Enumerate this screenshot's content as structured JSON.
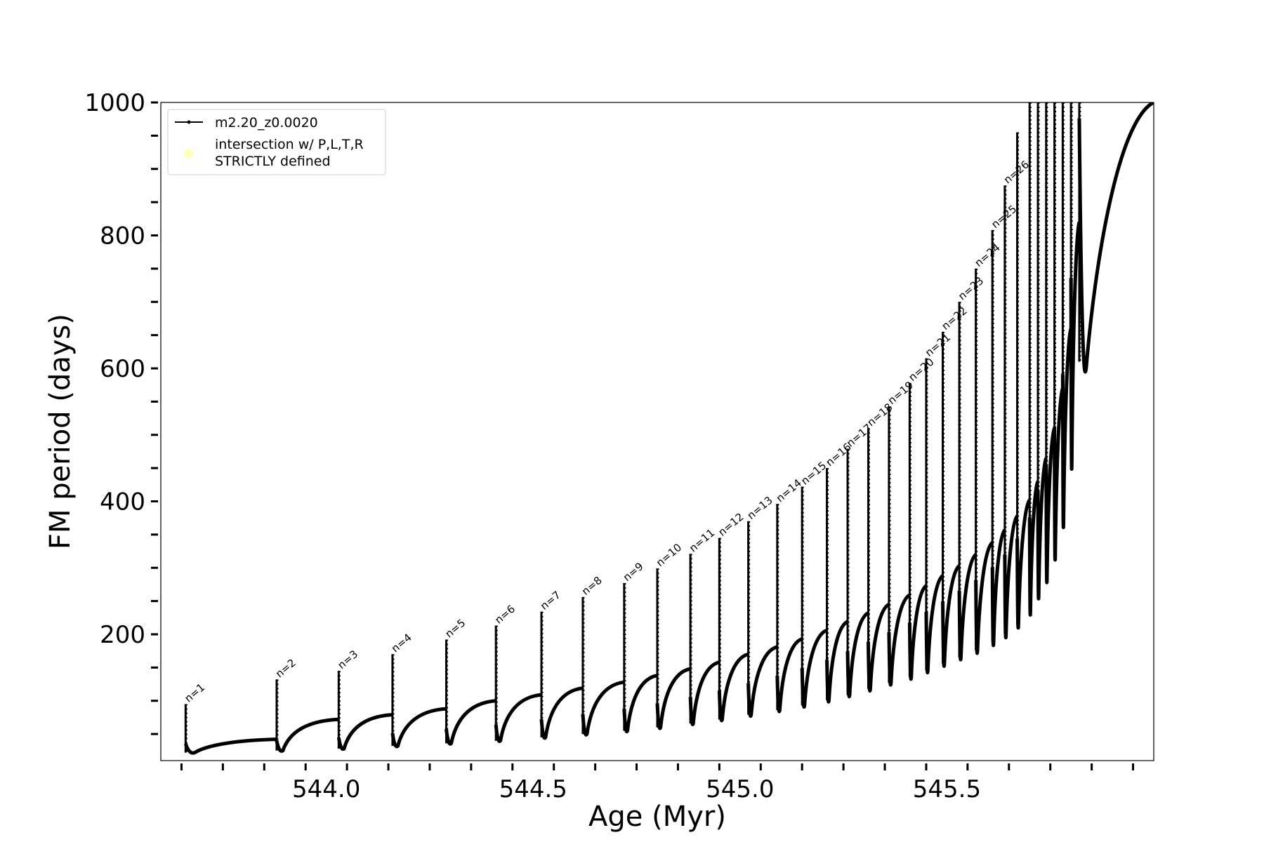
{
  "chart_data": {
    "type": "line",
    "title": "",
    "xlabel": "Age (Myr)",
    "ylabel": "FM period (days)",
    "xlim": [
      543.6,
      546.0
    ],
    "ylim": [
      10,
      1000
    ],
    "x_ticks": [
      544.0,
      544.5,
      545.0,
      545.5
    ],
    "x_tick_labels": [
      "544.0",
      "544.5",
      "545.0",
      "545.5"
    ],
    "x_minor_step": 0.1,
    "y_ticks": [
      200,
      400,
      600,
      800,
      1000
    ],
    "y_tick_labels": [
      "200",
      "400",
      "600",
      "800",
      "1000"
    ],
    "y_minor_step": 50,
    "grid": false,
    "legend": {
      "placement": "top-left",
      "entries": [
        {
          "label": "m2.20_z0.0020",
          "style": "line-with-markers",
          "color": "#000000"
        },
        {
          "label": "intersection w/ P,L,T,R\nSTRICTLY defined",
          "style": "marker",
          "color": "#ffffc0"
        }
      ]
    },
    "series": [
      {
        "name": "m2.20_z0.0020",
        "color": "#000000",
        "pulses": [
          {
            "n": 1,
            "age": 543.66,
            "peak": 95,
            "min": 22,
            "plateau": 42
          },
          {
            "n": 2,
            "age": 543.88,
            "peak": 132,
            "min": 25,
            "plateau": 72
          },
          {
            "n": 3,
            "age": 544.03,
            "peak": 145,
            "min": 28,
            "plateau": 79
          },
          {
            "n": 4,
            "age": 544.16,
            "peak": 170,
            "min": 32,
            "plateau": 88
          },
          {
            "n": 5,
            "age": 544.29,
            "peak": 192,
            "min": 36,
            "plateau": 100
          },
          {
            "n": 6,
            "age": 544.41,
            "peak": 213,
            "min": 40,
            "plateau": 109
          },
          {
            "n": 7,
            "age": 544.52,
            "peak": 234,
            "min": 45,
            "plateau": 119
          },
          {
            "n": 8,
            "age": 544.62,
            "peak": 256,
            "min": 50,
            "plateau": 128
          },
          {
            "n": 9,
            "age": 544.72,
            "peak": 277,
            "min": 55,
            "plateau": 138
          },
          {
            "n": 10,
            "age": 544.8,
            "peak": 299,
            "min": 60,
            "plateau": 148
          },
          {
            "n": 11,
            "age": 544.88,
            "peak": 321,
            "min": 66,
            "plateau": 158
          },
          {
            "n": 12,
            "age": 544.95,
            "peak": 345,
            "min": 72,
            "plateau": 170
          },
          {
            "n": 13,
            "age": 545.02,
            "peak": 370,
            "min": 79,
            "plateau": 181
          },
          {
            "n": 14,
            "age": 545.09,
            "peak": 396,
            "min": 86,
            "plateau": 193
          },
          {
            "n": 15,
            "age": 545.15,
            "peak": 422,
            "min": 93,
            "plateau": 206
          },
          {
            "n": 16,
            "age": 545.21,
            "peak": 450,
            "min": 101,
            "plateau": 219
          },
          {
            "n": 17,
            "age": 545.26,
            "peak": 479,
            "min": 109,
            "plateau": 232
          },
          {
            "n": 18,
            "age": 545.31,
            "peak": 510,
            "min": 118,
            "plateau": 245
          },
          {
            "n": 19,
            "age": 545.36,
            "peak": 543,
            "min": 127,
            "plateau": 259
          },
          {
            "n": 20,
            "age": 545.41,
            "peak": 578,
            "min": 136,
            "plateau": 273
          },
          {
            "n": 21,
            "age": 545.45,
            "peak": 615,
            "min": 146,
            "plateau": 288
          },
          {
            "n": 22,
            "age": 545.49,
            "peak": 655,
            "min": 156,
            "plateau": 303
          },
          {
            "n": 23,
            "age": 545.53,
            "peak": 700,
            "min": 166,
            "plateau": 320
          },
          {
            "n": 24,
            "age": 545.57,
            "peak": 750,
            "min": 176,
            "plateau": 338
          },
          {
            "n": 25,
            "age": 545.61,
            "peak": 808,
            "min": 188,
            "plateau": 357
          },
          {
            "n": 26,
            "age": 545.64,
            "peak": 875,
            "min": 200,
            "plateau": 378
          },
          {
            "n": 27,
            "age": 545.67,
            "peak": 955,
            "min": 215,
            "plateau": 402
          },
          {
            "n": 28,
            "age": 545.7,
            "peak": 1000,
            "min": 235,
            "plateau": 430
          },
          {
            "n": 29,
            "age": 545.72,
            "peak": 1000,
            "min": 260,
            "plateau": 465
          },
          {
            "n": 30,
            "age": 545.74,
            "peak": 1000,
            "min": 285,
            "plateau": 510
          },
          {
            "n": 31,
            "age": 545.76,
            "peak": 1000,
            "min": 320,
            "plateau": 570
          },
          {
            "n": 32,
            "age": 545.78,
            "peak": 1000,
            "min": 370,
            "plateau": 660
          },
          {
            "n": 33,
            "age": 545.8,
            "peak": 1000,
            "min": 460,
            "plateau": 820
          },
          {
            "n": 34,
            "age": 545.82,
            "peak": 1000,
            "min": 610,
            "plateau": 1000
          }
        ]
      }
    ],
    "annotations": [
      "n=1",
      "n=2",
      "n=3",
      "n=4",
      "n=5",
      "n=6",
      "n=7",
      "n=8",
      "n=9",
      "n=10",
      "n=11",
      "n=12",
      "n=13",
      "n=14",
      "n=15",
      "n=16",
      "n=17",
      "n=18",
      "n=19",
      "n=20",
      "n=21",
      "n=22",
      "n=23",
      "n=24",
      "n=25",
      "n=26"
    ]
  }
}
